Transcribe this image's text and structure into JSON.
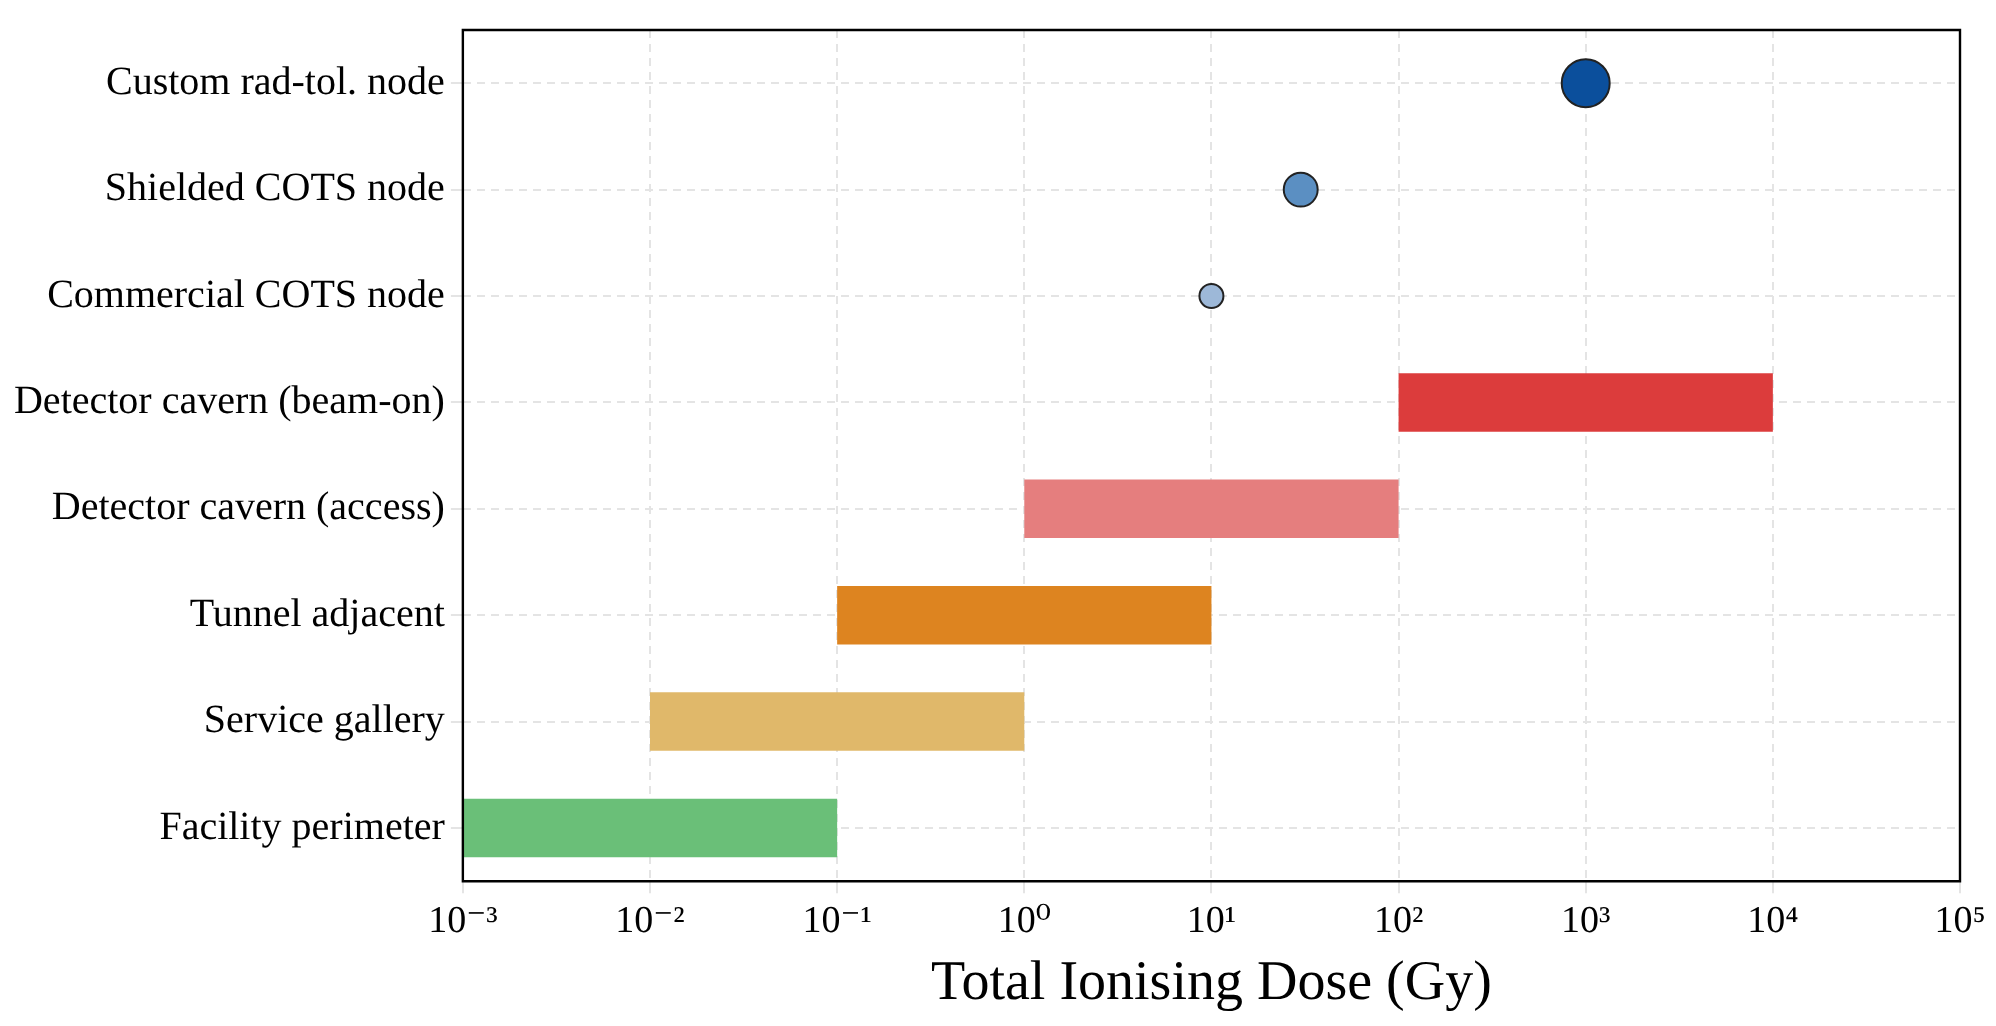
{
  "chart_data": {
    "type": "bar",
    "orientation": "horizontal",
    "log": "x",
    "xlabel": "Total Ionising Dose (Gy)",
    "categories": [
      "Custom rad-tol. node",
      "Shielded COTS node",
      "Commercial COTS node",
      "Detector cavern (beam-on)",
      "Detector cavern (access)",
      "Tunnel adjacent",
      "Service gallery",
      "Facility perimeter"
    ],
    "series": [
      {
        "type": "bar",
        "values": [
          null,
          null,
          null,
          9900,
          99,
          9.9,
          0.99,
          0.099
        ],
        "base": [
          null,
          null,
          null,
          100,
          1,
          0.1,
          0.01,
          0.001
        ],
        "colors": [
          "#dc3c3c",
          "#dc3c3c",
          "#dc3c3c",
          "#dc3c3c",
          "#e57e7e",
          "#dd8420",
          "#e0b86a",
          "#6abf78"
        ]
      },
      {
        "type": "bubble",
        "values": [
          1000,
          30,
          10,
          null,
          null,
          null,
          null,
          null
        ],
        "sizes": [
          1,
          0.5,
          0.25,
          null,
          null,
          null,
          null,
          null
        ],
        "colors": [
          "#0b4f9c",
          "#5b8fc2",
          "#9db8d8",
          null,
          null,
          null,
          null,
          null
        ]
      }
    ],
    "xlim": [
      0.001,
      100000
    ],
    "xticks": [
      {
        "value": 0.001,
        "label": "10⁻³"
      },
      {
        "value": 0.01,
        "label": "10⁻²"
      },
      {
        "value": 0.1,
        "label": "10⁻¹"
      },
      {
        "value": 1,
        "label": "10⁰"
      },
      {
        "value": 10,
        "label": "10¹"
      },
      {
        "value": 100,
        "label": "10²"
      },
      {
        "value": 1000,
        "label": "10³"
      },
      {
        "value": 10000,
        "label": "10⁴"
      },
      {
        "value": 100000,
        "label": "10⁵"
      }
    ],
    "grid": true,
    "legend": false,
    "marker": "circle"
  }
}
